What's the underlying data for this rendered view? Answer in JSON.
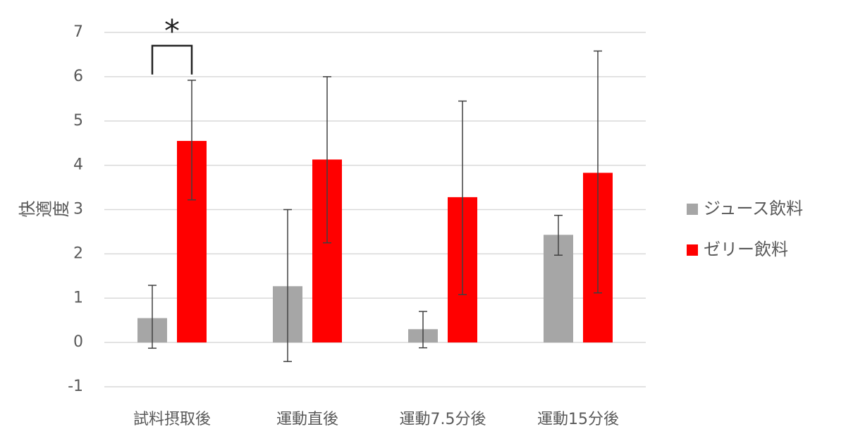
{
  "chart_data": {
    "type": "bar",
    "categories": [
      "試料摂取後",
      "運動直後",
      "運動7.5分後",
      "運動15分後"
    ],
    "series": [
      {
        "name": "ジュース飲料",
        "color": "#a6a6a6",
        "values": [
          0.55,
          1.27,
          0.3,
          2.43
        ],
        "error_low": [
          -0.13,
          -0.43,
          -0.12,
          1.97
        ],
        "error_high": [
          1.29,
          3.0,
          0.7,
          2.87
        ]
      },
      {
        "name": "ゼリー飲料",
        "color": "#ff0000",
        "values": [
          4.55,
          4.13,
          3.28,
          3.83
        ],
        "error_low": [
          3.22,
          2.25,
          1.08,
          1.12
        ],
        "error_high": [
          5.92,
          6.0,
          5.45,
          6.58
        ]
      }
    ],
    "ylabel": "快適度",
    "xlabel": "",
    "ylim": [
      -1,
      7
    ],
    "yticks": [
      "-1",
      "0",
      "1",
      "2",
      "3",
      "4",
      "5",
      "6",
      "7"
    ],
    "grid": true,
    "legend_position": "right",
    "annotation": {
      "text": "*",
      "category": "試料摂取後",
      "bracket_height": 6.7,
      "bracket_bottom": 6.05
    }
  }
}
